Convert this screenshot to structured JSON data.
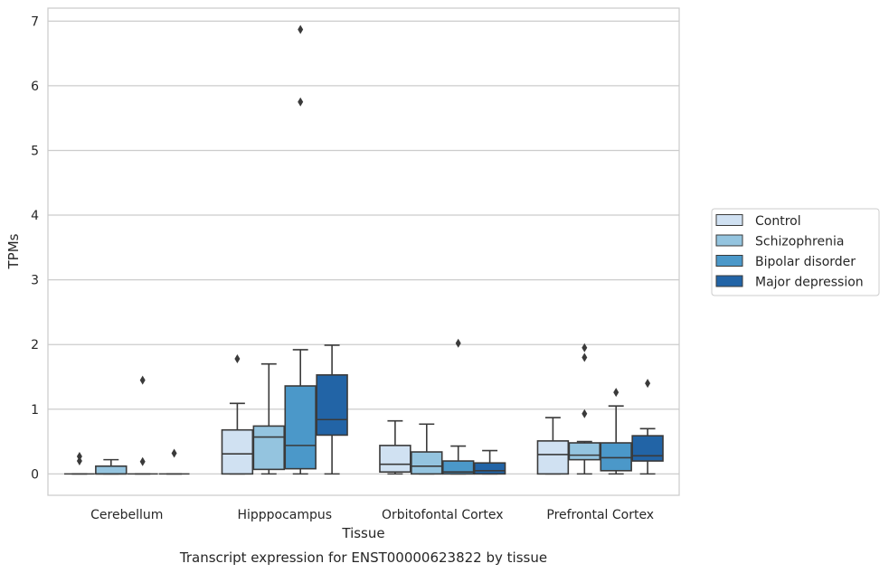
{
  "chart_data": {
    "type": "box",
    "title": "",
    "caption": "Transcript expression for ENST00000623822 by tissue",
    "xlabel": "Tissue",
    "ylabel": "TPMs",
    "ylim": [
      -0.33,
      7.2
    ],
    "yticks": [
      0,
      1,
      2,
      3,
      4,
      5,
      6,
      7
    ],
    "grid": "horizontal",
    "legend_position": "right",
    "categories": [
      "Cerebellum",
      "Hipppocampus",
      "Orbitofontal Cortex",
      "Prefrontal Cortex"
    ],
    "series": [
      {
        "name": "Control",
        "color": "#d0e1f2",
        "boxes": [
          {
            "min": 0,
            "q1": 0,
            "median": 0,
            "q3": 0,
            "max": 0,
            "outliers": [
              0.2,
              0.27
            ]
          },
          {
            "min": 0,
            "q1": 0,
            "median": 0.31,
            "q3": 0.68,
            "max": 1.09,
            "outliers": [
              1.78
            ]
          },
          {
            "min": 0,
            "q1": 0.03,
            "median": 0.15,
            "q3": 0.44,
            "max": 0.82,
            "outliers": []
          },
          {
            "min": 0,
            "q1": 0,
            "median": 0.3,
            "q3": 0.51,
            "max": 0.87,
            "outliers": []
          }
        ]
      },
      {
        "name": "Schizophrenia",
        "color": "#94c4df",
        "boxes": [
          {
            "min": 0,
            "q1": 0,
            "median": 0,
            "q3": 0.12,
            "max": 0.22,
            "outliers": []
          },
          {
            "min": 0,
            "q1": 0.07,
            "median": 0.57,
            "q3": 0.74,
            "max": 1.7,
            "outliers": []
          },
          {
            "min": 0,
            "q1": 0,
            "median": 0.12,
            "q3": 0.34,
            "max": 0.77,
            "outliers": []
          },
          {
            "min": 0,
            "q1": 0.22,
            "median": 0.29,
            "q3": 0.48,
            "max": 0.5,
            "outliers": [
              0.93,
              1.8,
              1.95
            ]
          }
        ]
      },
      {
        "name": "Bipolar disorder",
        "color": "#4b98c9",
        "boxes": [
          {
            "min": 0,
            "q1": 0,
            "median": 0,
            "q3": 0,
            "max": 0,
            "outliers": [
              0.19,
              1.45
            ]
          },
          {
            "min": 0,
            "q1": 0.08,
            "median": 0.44,
            "q3": 1.36,
            "max": 1.92,
            "outliers": [
              5.75,
              6.87
            ]
          },
          {
            "min": 0,
            "q1": 0,
            "median": 0.03,
            "q3": 0.2,
            "max": 0.43,
            "outliers": [
              2.02
            ]
          },
          {
            "min": 0,
            "q1": 0.05,
            "median": 0.25,
            "q3": 0.48,
            "max": 1.05,
            "outliers": [
              1.26
            ]
          }
        ]
      },
      {
        "name": "Major depression",
        "color": "#2264a6",
        "boxes": [
          {
            "min": 0,
            "q1": 0,
            "median": 0,
            "q3": 0,
            "max": 0,
            "outliers": [
              0.32
            ]
          },
          {
            "min": 0,
            "q1": 0.6,
            "median": 0.84,
            "q3": 1.53,
            "max": 1.99,
            "outliers": []
          },
          {
            "min": 0,
            "q1": 0,
            "median": 0.05,
            "q3": 0.17,
            "max": 0.36,
            "outliers": []
          },
          {
            "min": 0,
            "q1": 0.2,
            "median": 0.28,
            "q3": 0.59,
            "max": 0.7,
            "outliers": [
              1.4
            ]
          }
        ]
      }
    ]
  }
}
